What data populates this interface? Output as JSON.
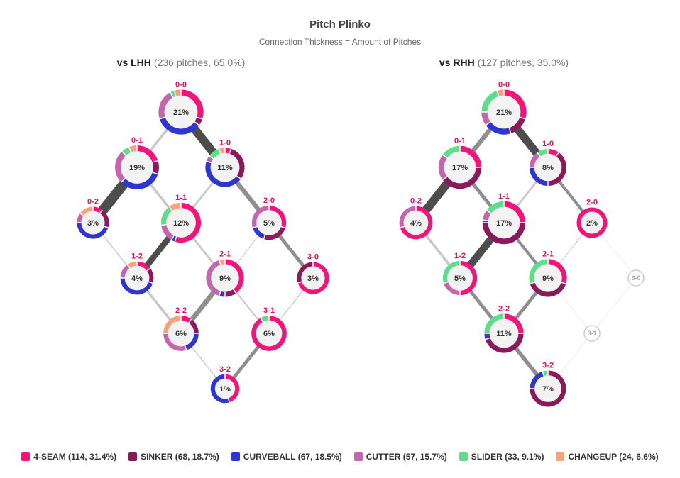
{
  "title": "Pitch Plinko",
  "subtitle": "Connection Thickness = Amount of Pitches",
  "colors": {
    "4-SEAM": "#f0157a",
    "SINKER": "#8b1a5c",
    "CURVEBALL": "#2f36d0",
    "CUTTER": "#c466ae",
    "SLIDER": "#5fdc8c",
    "CHANGEUP": "#f5a37a",
    "count_label": "#e0115f",
    "connection": "#555555",
    "empty_node": "#cccccc"
  },
  "legend": [
    {
      "key": "4-SEAM",
      "label": "4-SEAM (114, 31.4%)"
    },
    {
      "key": "SINKER",
      "label": "SINKER (68, 18.7%)"
    },
    {
      "key": "CURVEBALL",
      "label": "CURVEBALL (67, 18.5%)"
    },
    {
      "key": "CUTTER",
      "label": "CUTTER (57, 15.7%)"
    },
    {
      "key": "SLIDER",
      "label": "SLIDER (33, 9.1%)"
    },
    {
      "key": "CHANGEUP",
      "label": "CHANGEUP (24, 6.6%)"
    }
  ],
  "chart_data": [
    {
      "type": "network",
      "panel_title": "vs LHH",
      "panel_subtitle": "(236 pitches, 65.0%)",
      "nodes": [
        {
          "count": "0-0",
          "pct": "21%",
          "mix": {
            "4-SEAM": 0.3,
            "CUTTER": 0.22,
            "CHANGEUP": 0.05,
            "SINKER": 0.05,
            "SLIDER": 0.03,
            "CURVEBALL": 0.35
          }
        },
        {
          "count": "0-1",
          "pct": "19%",
          "mix": {
            "4-SEAM": 0.2,
            "CUTTER": 0.25,
            "CURVEBALL": 0.33,
            "SINKER": 0.1,
            "CHANGEUP": 0.06,
            "SLIDER": 0.06
          }
        },
        {
          "count": "1-0",
          "pct": "11%",
          "mix": {
            "4-SEAM": 0.05,
            "CURVEBALL": 0.45,
            "SINKER": 0.3,
            "CUTTER": 0.05,
            "CHANGEUP": 0.05,
            "SLIDER": 0.1
          }
        },
        {
          "count": "0-2",
          "pct": "3%",
          "mix": {
            "4-SEAM": 0.1,
            "CURVEBALL": 0.45,
            "SINKER": 0.2,
            "CUTTER": 0.1,
            "CHANGEUP": 0.15
          }
        },
        {
          "count": "1-1",
          "pct": "12%",
          "mix": {
            "4-SEAM": 0.55,
            "CUTTER": 0.15,
            "CHANGEUP": 0.1,
            "SLIDER": 0.17,
            "CURVEBALL": 0.03
          }
        },
        {
          "count": "2-0",
          "pct": "5%",
          "mix": {
            "4-SEAM": 0.3,
            "CURVEBALL": 0.15,
            "SINKER": 0.25,
            "CUTTER": 0.3
          }
        },
        {
          "count": "1-2",
          "pct": "4%",
          "mix": {
            "4-SEAM": 0.15,
            "CURVEBALL": 0.45,
            "SINKER": 0.15,
            "CUTTER": 0.15,
            "CHANGEUP": 0.1
          }
        },
        {
          "count": "2-1",
          "pct": "9%",
          "mix": {
            "4-SEAM": 0.4,
            "CUTTER": 0.4,
            "SINKER": 0.1,
            "CHANGEUP": 0.05,
            "CURVEBALL": 0.05
          }
        },
        {
          "count": "3-0",
          "pct": "3%",
          "mix": {
            "4-SEAM": 0.7,
            "SINKER": 0.3
          }
        },
        {
          "count": "2-2",
          "pct": "6%",
          "mix": {
            "4-SEAM": 0.1,
            "SINKER": 0.15,
            "CUTTER": 0.3,
            "CHANGEUP": 0.25,
            "CURVEBALL": 0.2
          }
        },
        {
          "count": "3-1",
          "pct": "6%",
          "mix": {
            "4-SEAM": 0.92,
            "SLIDER": 0.08
          }
        },
        {
          "count": "3-2",
          "pct": "1%",
          "mix": {
            "4-SEAM": 0.45,
            "CURVEBALL": 0.55
          }
        }
      ],
      "edges": [
        {
          "from": "0-0",
          "to": "0-1",
          "weight": 0.25
        },
        {
          "from": "0-0",
          "to": "1-0",
          "weight": 0.85
        },
        {
          "from": "0-1",
          "to": "0-2",
          "weight": 1.0
        },
        {
          "from": "0-1",
          "to": "1-1",
          "weight": 0.25
        },
        {
          "from": "1-0",
          "to": "1-1",
          "weight": 0.2
        },
        {
          "from": "1-0",
          "to": "2-0",
          "weight": 0.45
        },
        {
          "from": "0-2",
          "to": "1-2",
          "weight": 0.1
        },
        {
          "from": "1-1",
          "to": "1-2",
          "weight": 0.6
        },
        {
          "from": "1-1",
          "to": "2-1",
          "weight": 0.2
        },
        {
          "from": "2-0",
          "to": "2-1",
          "weight": 0.05
        },
        {
          "from": "2-0",
          "to": "3-0",
          "weight": 0.35
        },
        {
          "from": "1-2",
          "to": "2-2",
          "weight": 0.25
        },
        {
          "from": "2-1",
          "to": "2-2",
          "weight": 0.5
        },
        {
          "from": "2-1",
          "to": "3-1",
          "weight": 0.15
        },
        {
          "from": "3-0",
          "to": "3-1",
          "weight": 0.1
        },
        {
          "from": "2-2",
          "to": "3-2",
          "weight": 0.1
        },
        {
          "from": "3-1",
          "to": "3-2",
          "weight": 0.35
        }
      ]
    },
    {
      "type": "network",
      "panel_title": "vs RHH",
      "panel_subtitle": "(127 pitches, 35.0%)",
      "nodes": [
        {
          "count": "0-0",
          "pct": "21%",
          "mix": {
            "4-SEAM": 0.3,
            "CURVEBALL": 0.2,
            "SINKER": 0.15,
            "SLIDER": 0.2,
            "CUTTER": 0.1,
            "CHANGEUP": 0.05
          }
        },
        {
          "count": "0-1",
          "pct": "17%",
          "mix": {
            "4-SEAM": 0.25,
            "SINKER": 0.4,
            "SLIDER": 0.15,
            "CUTTER": 0.2
          }
        },
        {
          "count": "1-0",
          "pct": "8%",
          "mix": {
            "4-SEAM": 0.1,
            "SINKER": 0.4,
            "CURVEBALL": 0.25,
            "CUTTER": 0.15,
            "SLIDER": 0.1
          }
        },
        {
          "count": "0-2",
          "pct": "4%",
          "mix": {
            "4-SEAM": 0.7,
            "CUTTER": 0.3
          }
        },
        {
          "count": "1-1",
          "pct": "17%",
          "mix": {
            "4-SEAM": 0.25,
            "SINKER": 0.5,
            "SLIDER": 0.15,
            "CUTTER": 0.08,
            "CURVEBALL": 0.02
          }
        },
        {
          "count": "2-0",
          "pct": "2%",
          "mix": {
            "4-SEAM": 1.0
          }
        },
        {
          "count": "1-2",
          "pct": "5%",
          "mix": {
            "4-SEAM": 0.5,
            "SLIDER": 0.3,
            "CUTTER": 0.2
          }
        },
        {
          "count": "2-1",
          "pct": "9%",
          "mix": {
            "4-SEAM": 0.3,
            "SINKER": 0.4,
            "SLIDER": 0.3
          }
        },
        {
          "count": "3-0",
          "pct": "",
          "mix": {}
        },
        {
          "count": "2-2",
          "pct": "11%",
          "mix": {
            "4-SEAM": 0.25,
            "SINKER": 0.45,
            "SLIDER": 0.25,
            "CURVEBALL": 0.05
          }
        },
        {
          "count": "3-1",
          "pct": "",
          "mix": {}
        },
        {
          "count": "3-2",
          "pct": "7%",
          "mix": {
            "SINKER": 0.75,
            "CURVEBALL": 0.2,
            "SLIDER": 0.05
          }
        }
      ],
      "edges": [
        {
          "from": "0-0",
          "to": "0-1",
          "weight": 0.45
        },
        {
          "from": "0-0",
          "to": "1-0",
          "weight": 0.8
        },
        {
          "from": "0-1",
          "to": "0-2",
          "weight": 0.85
        },
        {
          "from": "0-1",
          "to": "1-1",
          "weight": 0.35
        },
        {
          "from": "1-0",
          "to": "1-1",
          "weight": 0.2
        },
        {
          "from": "1-0",
          "to": "2-0",
          "weight": 0.3
        },
        {
          "from": "0-2",
          "to": "1-2",
          "weight": 0.25
        },
        {
          "from": "1-1",
          "to": "1-2",
          "weight": 0.75
        },
        {
          "from": "1-1",
          "to": "2-1",
          "weight": 0.3
        },
        {
          "from": "2-0",
          "to": "2-1",
          "weight": 0.05
        },
        {
          "from": "2-0",
          "to": "3-0",
          "weight": 0.0
        },
        {
          "from": "1-2",
          "to": "2-2",
          "weight": 0.35
        },
        {
          "from": "2-1",
          "to": "2-2",
          "weight": 0.35
        },
        {
          "from": "2-1",
          "to": "3-1",
          "weight": 0.02
        },
        {
          "from": "3-0",
          "to": "3-1",
          "weight": 0.0
        },
        {
          "from": "2-2",
          "to": "3-2",
          "weight": 0.4
        },
        {
          "from": "3-1",
          "to": "3-2",
          "weight": 0.0
        }
      ]
    }
  ]
}
